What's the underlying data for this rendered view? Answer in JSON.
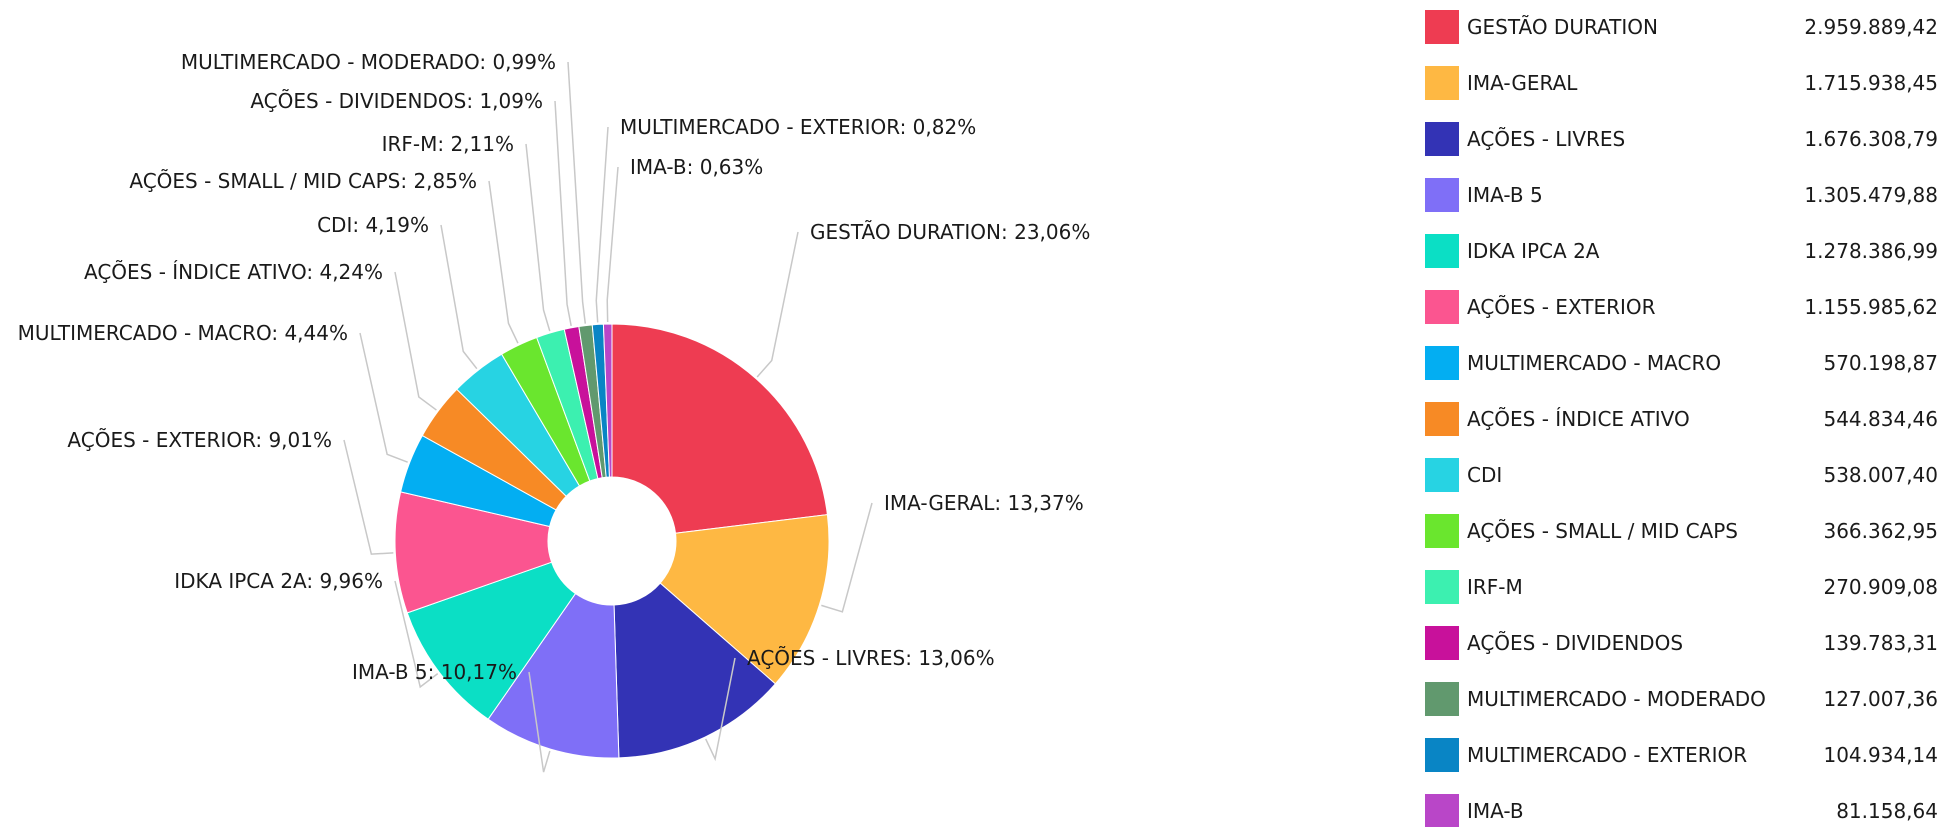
{
  "chart_data": {
    "type": "pie",
    "donut": true,
    "legend_position": "right",
    "slices": [
      {
        "name": "GESTÃO DURATION",
        "percent_label": "23,06%",
        "percent": 23.06,
        "value_label": "2.959.889,42",
        "value": 2959889.42,
        "color": "#ee3c52"
      },
      {
        "name": "IMA-GERAL",
        "percent_label": "13,37%",
        "percent": 13.37,
        "value_label": "1.715.938,45",
        "value": 1715938.45,
        "color": "#feb843"
      },
      {
        "name": "AÇÕES - LIVRES",
        "percent_label": "13,06%",
        "percent": 13.06,
        "value_label": "1.676.308,79",
        "value": 1676308.79,
        "color": "#3333b5"
      },
      {
        "name": "IMA-B 5",
        "percent_label": "10,17%",
        "percent": 10.17,
        "value_label": "1.305.479,88",
        "value": 1305479.88,
        "color": "#7f6ff7"
      },
      {
        "name": "IDKA IPCA 2A",
        "percent_label": "9,96%",
        "percent": 9.96,
        "value_label": "1.278.386,99",
        "value": 1278386.99,
        "color": "#0bdfc5"
      },
      {
        "name": "AÇÕES - EXTERIOR",
        "percent_label": "9,01%",
        "percent": 9.01,
        "value_label": "1.155.985,62",
        "value": 1155985.62,
        "color": "#fb5590"
      },
      {
        "name": "MULTIMERCADO - MACRO",
        "percent_label": "4,44%",
        "percent": 4.44,
        "value_label": "570.198,87",
        "value": 570198.87,
        "color": "#03aef2"
      },
      {
        "name": "AÇÕES - ÍNDICE ATIVO",
        "percent_label": "4,24%",
        "percent": 4.24,
        "value_label": "544.834,46",
        "value": 544834.46,
        "color": "#f78a25"
      },
      {
        "name": "CDI",
        "percent_label": "4,19%",
        "percent": 4.19,
        "value_label": "538.007,40",
        "value": 538007.4,
        "color": "#27d3e3"
      },
      {
        "name": "AÇÕES - SMALL / MID CAPS",
        "percent_label": "2,85%",
        "percent": 2.85,
        "value_label": "366.362,95",
        "value": 366362.95,
        "color": "#6ae62e"
      },
      {
        "name": "IRF-M",
        "percent_label": "2,11%",
        "percent": 2.11,
        "value_label": "270.909,08",
        "value": 270909.08,
        "color": "#3cf0b0"
      },
      {
        "name": "AÇÕES - DIVIDENDOS",
        "percent_label": "1,09%",
        "percent": 1.09,
        "value_label": "139.783,31",
        "value": 139783.31,
        "color": "#c8119b"
      },
      {
        "name": "MULTIMERCADO - MODERADO",
        "percent_label": "0,99%",
        "percent": 0.99,
        "value_label": "127.007,36",
        "value": 127007.36,
        "color": "#61996e"
      },
      {
        "name": "MULTIMERCADO - EXTERIOR",
        "percent_label": "0,82%",
        "percent": 0.82,
        "value_label": "104.934,14",
        "value": 104934.14,
        "color": "#0985c5"
      },
      {
        "name": "IMA-B",
        "percent_label": "0,63%",
        "percent": 0.63,
        "value_label": "81.158,64",
        "value": 81158.64,
        "color": "#b946c8"
      }
    ]
  }
}
